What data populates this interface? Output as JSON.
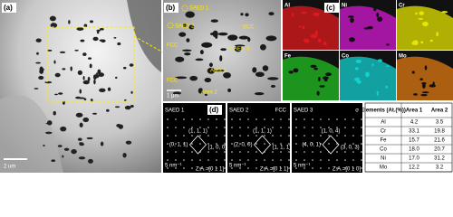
{
  "panel_a": {
    "label": "(a)",
    "scale": "2 um"
  },
  "panel_b": {
    "label": "(b)",
    "annotations": [
      "SAED 1",
      "SAED 2",
      "BCC",
      "FCC",
      "SAED 3",
      "Area 1",
      "FCC",
      "Area 2"
    ],
    "scale": "1 μm"
  },
  "panel_c": {
    "label": "(c)",
    "maps": [
      "Al",
      "Ni",
      "Cr",
      "Fe",
      "Co",
      "Mo"
    ]
  },
  "panel_d": {
    "label": "(d)",
    "patterns": [
      {
        "title": "SAED 1",
        "phase": "BCC",
        "indices": [
          "(1, 1, 1)",
          "(0, 1, 1)",
          "(1, 0, 0)"
        ],
        "scale": "5 nm⁻¹",
        "zone": "Z.A.=[0 1 1]"
      },
      {
        "title": "SAED 2",
        "phase": "FCC",
        "indices": [
          "(1, 1, 1)",
          "(2, 0, 0)",
          "(1, 1, 1)"
        ],
        "scale": "5 nm⁻¹",
        "zone": "Z.A.=[0 1 1]"
      },
      {
        "title": "SAED 3",
        "phase": "σ",
        "indices": [
          "(1, 0, 4)",
          "(4, 0, 1)",
          "(3, 0, 3)"
        ],
        "scale": "5 nm⁻¹",
        "zone": "Z.A.=[0 1 0]"
      }
    ]
  },
  "table": {
    "header": [
      "Elements (At.(%))",
      "Area 1",
      "Area 2"
    ],
    "rows": [
      [
        "Al",
        "4.2",
        "3.5"
      ],
      [
        "Cr",
        "33.1",
        "19.8"
      ],
      [
        "Fe",
        "15.7",
        "21.6"
      ],
      [
        "Co",
        "18.0",
        "20.7"
      ],
      [
        "Ni",
        "17.0",
        "31.2"
      ],
      [
        "Mo",
        "12.2",
        "3.2"
      ]
    ]
  }
}
